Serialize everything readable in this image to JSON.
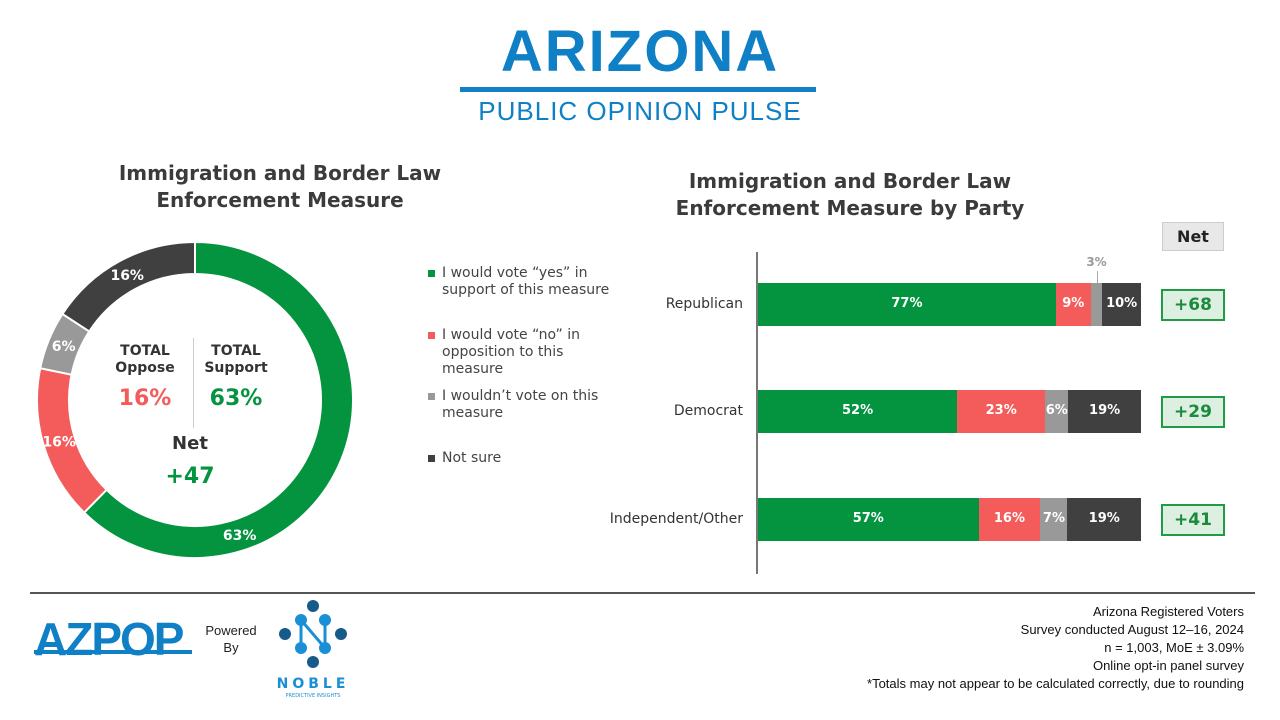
{
  "header": {
    "logo_title": "ARIZONA",
    "logo_subtitle": "PUBLIC OPINION PULSE"
  },
  "colors": {
    "yes": "#049440",
    "no": "#f45b5b",
    "wouldnt": "#999999",
    "notsure": "#404040",
    "brand": "#0f7fc6"
  },
  "chart_data": [
    {
      "type": "pie",
      "variant": "donut",
      "title": "Immigration and Border Law Enforcement Measure",
      "categories": [
        "I would vote “yes” in support of this measure",
        "I would vote “no” in opposition to this measure",
        "I wouldn’t vote on this measure",
        "Not sure"
      ],
      "values": [
        63,
        16,
        6,
        16
      ],
      "labels": [
        "63%",
        "16%",
        "6%",
        "16%"
      ],
      "center": {
        "oppose_label": "TOTAL Oppose",
        "oppose_value": "16%",
        "support_label": "TOTAL Support",
        "support_value": "63%",
        "net_label": "Net",
        "net_value": "+47"
      },
      "legend": "right"
    },
    {
      "type": "bar",
      "orientation": "horizontal",
      "stacked": true,
      "title": "Immigration and Border Law Enforcement Measure by Party",
      "categories": [
        "Republican",
        "Democrat",
        "Independent/Other"
      ],
      "series": [
        {
          "values": [
            77,
            52,
            57
          ],
          "labels": [
            "77%",
            "52%",
            "57%"
          ]
        },
        {
          "values": [
            9,
            23,
            16
          ],
          "labels": [
            "9%",
            "23%",
            "16%"
          ]
        },
        {
          "values": [
            3,
            6,
            7
          ],
          "labels": [
            "3%",
            "6%",
            "7%"
          ]
        },
        {
          "values": [
            10,
            19,
            19
          ],
          "labels": [
            "10%",
            "19%",
            "19%"
          ]
        }
      ],
      "net_header": "Net",
      "net": [
        "+68",
        "+29",
        "+41"
      ]
    }
  ],
  "footer": {
    "azpop_logo": "AZPOP",
    "powered": "Powered",
    "by": "By",
    "noble_logo": "NOBLE",
    "noble_sub": "PREDICTIVE INSIGHTS",
    "notes": [
      "Arizona Registered Voters",
      "Survey conducted August 12–16, 2024",
      "n = 1,003, MoE ± 3.09%",
      "Online opt-in panel survey",
      "*Totals may not appear to be calculated correctly, due to rounding"
    ]
  }
}
